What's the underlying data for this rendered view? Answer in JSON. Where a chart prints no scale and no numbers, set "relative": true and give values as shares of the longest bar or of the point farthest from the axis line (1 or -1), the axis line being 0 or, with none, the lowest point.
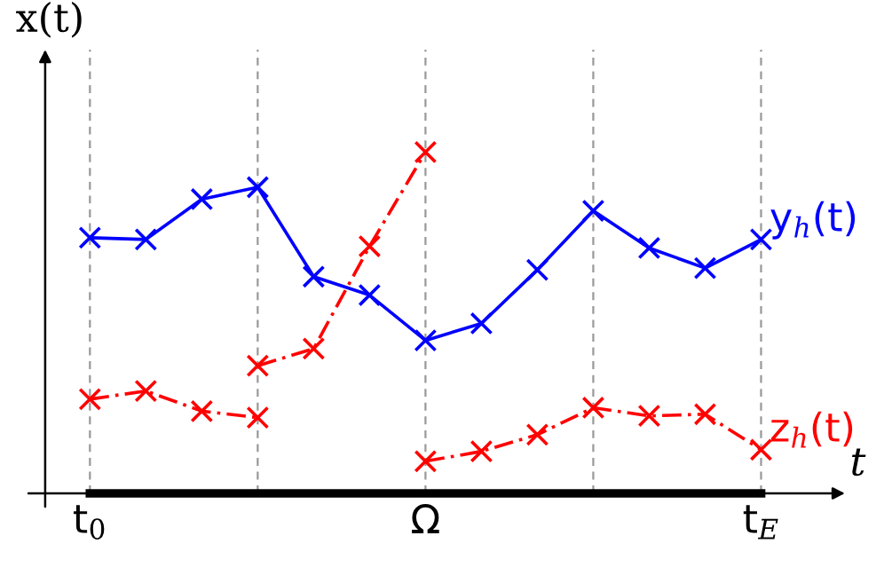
{
  "chart_data": {
    "type": "line",
    "relative": true,
    "xlabel": "t",
    "ylabel": "x(t)",
    "categories": [
      "t$_{0}$",
      null,
      null,
      null,
      null,
      null,
      "Ω",
      null,
      null,
      null,
      null,
      null,
      "t$_{E}$"
    ],
    "marker": "cross",
    "grid": "x",
    "legend": false,
    "series": [
      {
        "name": "y$_{h}$(t)",
        "color": "#0000ff",
        "line_style": "solid",
        "values": [
          0.749,
          0.744,
          0.862,
          0.897,
          0.635,
          0.581,
          0.448,
          0.498,
          0.655,
          0.828,
          0.719,
          0.66,
          0.744
        ]
      },
      {
        "color": "#ff0000",
        "line_style": "dashed",
        "values": [
          0.276,
          0.3,
          0.241,
          0.222,
          null,
          null,
          null,
          null,
          null,
          null,
          null,
          null,
          null
        ]
      },
      {
        "color": "#ff0000",
        "line_style": "dashed",
        "values": [
          null,
          null,
          null,
          0.374,
          0.424,
          0.724,
          1.0,
          null,
          null,
          null,
          null,
          null,
          null
        ]
      },
      {
        "name": "z$_{h}$(t)",
        "color": "#ff0000",
        "line_style": "dashed",
        "values": [
          null,
          null,
          null,
          null,
          null,
          null,
          0.094,
          0.123,
          0.172,
          0.251,
          0.227,
          0.232,
          0.128
        ]
      }
    ]
  }
}
